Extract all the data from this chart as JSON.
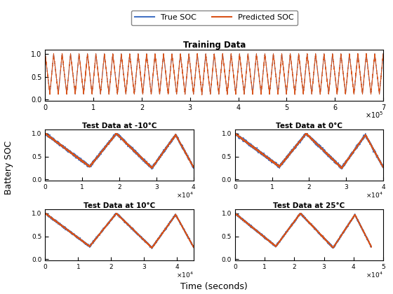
{
  "title_training": "Training Data",
  "title_test1": "Test Data at -10°C",
  "title_test2": "Test Data at 0°C",
  "title_test3": "Test Data at 10°C",
  "title_test4": "Test Data at 25°C",
  "xlabel": "Time (seconds)",
  "ylabel": "Battery SOC",
  "legend_true": "True SOC",
  "legend_pred": "Predicted SOC",
  "true_color": "#4472C4",
  "pred_color": "#D95319",
  "background": "#ffffff",
  "training_xlim": [
    0,
    700000.0
  ],
  "training_ylim": [
    0,
    1
  ],
  "n_train_cycles": 40,
  "train_min": 0.1,
  "train_max": 1.0,
  "test1_xlim": [
    0,
    40000.0
  ],
  "test2_xlim": [
    0,
    40000.0
  ],
  "test3_xlim": [
    0,
    45000.0
  ],
  "test4_xlim": [
    0,
    46000.0
  ]
}
